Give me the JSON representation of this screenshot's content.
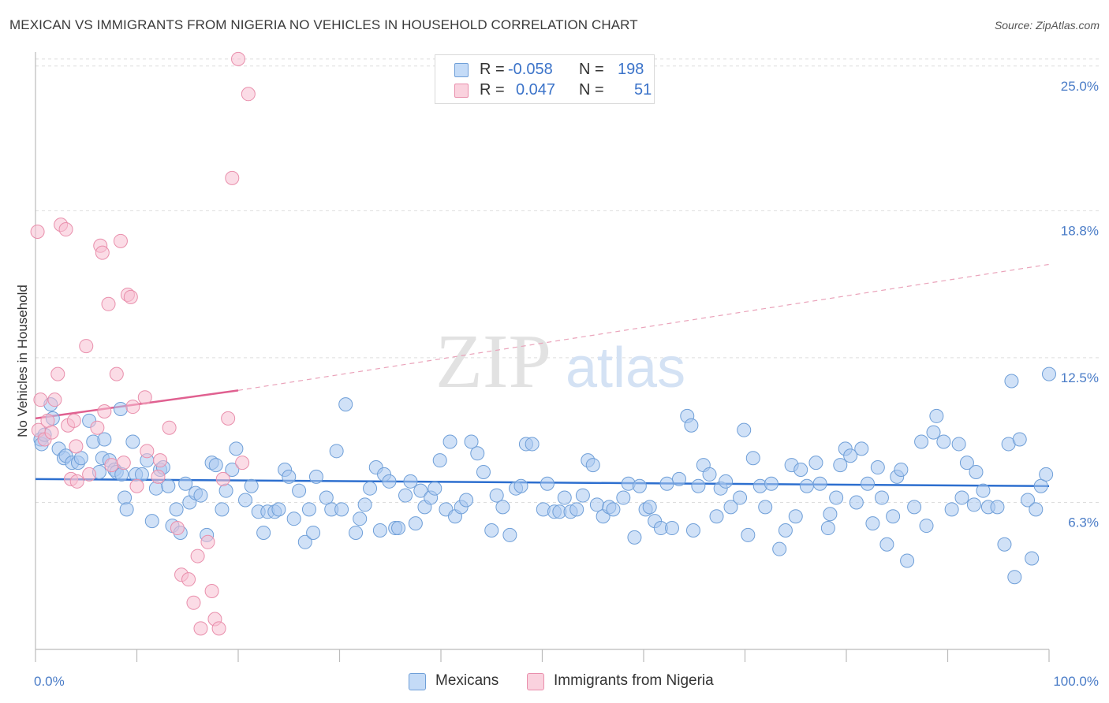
{
  "title": "MEXICAN VS IMMIGRANTS FROM NIGERIA NO VEHICLES IN HOUSEHOLD CORRELATION CHART",
  "source": "Source: ZipAtlas.com",
  "watermark": {
    "zip": "ZIP",
    "atlas": "atlas"
  },
  "legend": {
    "rows": [
      {
        "r_label": "R =",
        "r_value": "-0.058",
        "n_label": "N =",
        "n_value": "198",
        "color": "#a9c8f0",
        "stroke": "#6f9fd8"
      },
      {
        "r_label": "R =",
        "r_value": "0.047",
        "n_label": "N =",
        "n_value": "51",
        "color": "#f7c0d1",
        "stroke": "#e98fac"
      }
    ]
  },
  "bottom_legend": [
    {
      "label": "Mexicans",
      "color": "#b9d4f5",
      "stroke": "#6f9fd8"
    },
    {
      "label": "Immigrants from Nigeria",
      "color": "#f9ccda",
      "stroke": "#e98fac"
    }
  ],
  "chart_data": {
    "type": "scatter",
    "title": "MEXICAN VS IMMIGRANTS FROM NIGERIA NO VEHICLES IN HOUSEHOLD CORRELATION CHART",
    "xlabel": "",
    "ylabel": "No Vehicles in Household",
    "xlim": [
      0,
      100
    ],
    "ylim": [
      0,
      25.6
    ],
    "x_tick_labels": [
      "0.0%",
      "100.0%"
    ],
    "y_ticks": [
      6.3,
      12.5,
      18.8,
      25.0
    ],
    "y_tick_labels": [
      "6.3%",
      "12.5%",
      "18.8%",
      "25.0%"
    ],
    "grid": "horizontal dashed",
    "legend_position": "top-center",
    "series": [
      {
        "name": "Mexicans",
        "color": "#a9c8f0",
        "stroke": "#6f9fd8",
        "trend": {
          "x": [
            0,
            100
          ],
          "y": [
            7.3,
            7.0
          ],
          "color": "#2d6fcf"
        },
        "points": [
          [
            0.5,
            9.0
          ],
          [
            0.6,
            8.8
          ],
          [
            0.9,
            9.2
          ],
          [
            1.5,
            10.5
          ],
          [
            1.7,
            9.9
          ],
          [
            2.3,
            8.6
          ],
          [
            2.8,
            8.2
          ],
          [
            3.0,
            8.3
          ],
          [
            3.6,
            8.0
          ],
          [
            4.2,
            8.0
          ],
          [
            4.5,
            8.2
          ],
          [
            5.3,
            9.8
          ],
          [
            5.7,
            8.9
          ],
          [
            6.3,
            7.6
          ],
          [
            6.6,
            8.2
          ],
          [
            6.8,
            9.0
          ],
          [
            7.3,
            8.1
          ],
          [
            7.8,
            7.7
          ],
          [
            8.0,
            7.6
          ],
          [
            8.4,
            10.3
          ],
          [
            8.5,
            7.5
          ],
          [
            8.8,
            6.5
          ],
          [
            9.0,
            6.0
          ],
          [
            9.6,
            8.9
          ],
          [
            9.9,
            7.5
          ],
          [
            10.5,
            7.5
          ],
          [
            11.0,
            8.1
          ],
          [
            11.5,
            5.5
          ],
          [
            11.9,
            6.9
          ],
          [
            12.3,
            7.7
          ],
          [
            12.6,
            7.8
          ],
          [
            13.1,
            7.0
          ],
          [
            13.5,
            5.3
          ],
          [
            13.9,
            6.0
          ],
          [
            14.3,
            5.0
          ],
          [
            14.8,
            7.1
          ],
          [
            15.2,
            6.3
          ],
          [
            15.8,
            6.7
          ],
          [
            16.3,
            6.6
          ],
          [
            16.9,
            4.9
          ],
          [
            17.4,
            8.0
          ],
          [
            17.8,
            7.9
          ],
          [
            18.4,
            6.0
          ],
          [
            18.8,
            6.8
          ],
          [
            19.4,
            7.7
          ],
          [
            19.8,
            8.6
          ],
          [
            20.7,
            6.4
          ],
          [
            21.3,
            7.0
          ],
          [
            22.0,
            5.9
          ],
          [
            22.5,
            5.0
          ],
          [
            22.9,
            5.9
          ],
          [
            23.6,
            5.9
          ],
          [
            24.0,
            6.0
          ],
          [
            24.6,
            7.7
          ],
          [
            25.0,
            7.4
          ],
          [
            25.5,
            5.6
          ],
          [
            26.0,
            6.8
          ],
          [
            26.6,
            4.6
          ],
          [
            27.0,
            6.0
          ],
          [
            27.4,
            5.0
          ],
          [
            27.7,
            7.4
          ],
          [
            28.7,
            6.5
          ],
          [
            29.2,
            6.0
          ],
          [
            29.7,
            8.5
          ],
          [
            30.2,
            6.0
          ],
          [
            30.6,
            10.5
          ],
          [
            31.6,
            5.0
          ],
          [
            32.0,
            5.6
          ],
          [
            32.5,
            6.2
          ],
          [
            33.0,
            6.9
          ],
          [
            33.6,
            7.8
          ],
          [
            34.0,
            5.1
          ],
          [
            34.4,
            7.5
          ],
          [
            34.9,
            7.2
          ],
          [
            35.5,
            5.2
          ],
          [
            35.8,
            5.2
          ],
          [
            36.5,
            6.6
          ],
          [
            37.0,
            7.2
          ],
          [
            37.5,
            5.4
          ],
          [
            38.0,
            6.8
          ],
          [
            38.4,
            6.1
          ],
          [
            39.0,
            6.5
          ],
          [
            39.4,
            6.9
          ],
          [
            39.9,
            8.1
          ],
          [
            40.5,
            6.0
          ],
          [
            40.9,
            8.9
          ],
          [
            41.4,
            5.7
          ],
          [
            42.0,
            6.1
          ],
          [
            42.5,
            6.4
          ],
          [
            43.0,
            8.9
          ],
          [
            43.6,
            8.4
          ],
          [
            44.2,
            7.6
          ],
          [
            45.0,
            5.1
          ],
          [
            45.5,
            6.6
          ],
          [
            46.1,
            6.1
          ],
          [
            46.8,
            4.9
          ],
          [
            47.4,
            6.9
          ],
          [
            47.9,
            7.0
          ],
          [
            48.4,
            8.8
          ],
          [
            49.0,
            8.8
          ],
          [
            50.1,
            6.0
          ],
          [
            50.5,
            7.1
          ],
          [
            51.2,
            5.9
          ],
          [
            51.7,
            5.9
          ],
          [
            52.2,
            6.5
          ],
          [
            52.8,
            5.9
          ],
          [
            53.4,
            6.0
          ],
          [
            54.0,
            6.6
          ],
          [
            54.5,
            8.1
          ],
          [
            55.0,
            7.9
          ],
          [
            55.4,
            6.2
          ],
          [
            56.0,
            5.7
          ],
          [
            56.6,
            6.1
          ],
          [
            57.0,
            6.0
          ],
          [
            58.0,
            6.5
          ],
          [
            58.5,
            7.1
          ],
          [
            59.1,
            4.8
          ],
          [
            59.6,
            7.0
          ],
          [
            60.2,
            6.0
          ],
          [
            60.6,
            6.1
          ],
          [
            61.1,
            5.5
          ],
          [
            61.7,
            5.2
          ],
          [
            62.3,
            7.1
          ],
          [
            62.8,
            5.2
          ],
          [
            63.5,
            7.3
          ],
          [
            64.3,
            10.0
          ],
          [
            64.7,
            9.6
          ],
          [
            64.9,
            5.1
          ],
          [
            65.4,
            7.0
          ],
          [
            65.9,
            7.9
          ],
          [
            66.5,
            7.5
          ],
          [
            67.2,
            5.7
          ],
          [
            67.6,
            6.9
          ],
          [
            68.1,
            7.2
          ],
          [
            68.6,
            6.1
          ],
          [
            69.5,
            6.5
          ],
          [
            69.9,
            9.4
          ],
          [
            70.3,
            4.9
          ],
          [
            70.8,
            8.2
          ],
          [
            71.5,
            7.0
          ],
          [
            72.0,
            6.1
          ],
          [
            72.6,
            7.1
          ],
          [
            73.4,
            4.3
          ],
          [
            74.0,
            5.1
          ],
          [
            74.6,
            7.9
          ],
          [
            75.0,
            5.7
          ],
          [
            75.5,
            7.7
          ],
          [
            76.1,
            7.0
          ],
          [
            77.0,
            8.0
          ],
          [
            77.4,
            7.1
          ],
          [
            78.2,
            5.2
          ],
          [
            78.4,
            5.8
          ],
          [
            79.0,
            6.5
          ],
          [
            79.4,
            7.9
          ],
          [
            79.9,
            8.6
          ],
          [
            80.4,
            8.3
          ],
          [
            81.0,
            6.3
          ],
          [
            81.5,
            8.6
          ],
          [
            82.1,
            7.1
          ],
          [
            82.6,
            5.4
          ],
          [
            83.1,
            7.8
          ],
          [
            83.5,
            6.5
          ],
          [
            84.0,
            4.5
          ],
          [
            84.6,
            5.7
          ],
          [
            85.0,
            7.4
          ],
          [
            85.4,
            7.7
          ],
          [
            86.0,
            3.8
          ],
          [
            86.7,
            6.1
          ],
          [
            87.4,
            8.9
          ],
          [
            87.9,
            5.3
          ],
          [
            88.6,
            9.3
          ],
          [
            88.9,
            10.0
          ],
          [
            89.6,
            8.9
          ],
          [
            90.4,
            6.0
          ],
          [
            91.1,
            8.8
          ],
          [
            91.4,
            6.5
          ],
          [
            91.9,
            8.0
          ],
          [
            92.6,
            6.2
          ],
          [
            92.8,
            7.6
          ],
          [
            93.5,
            6.8
          ],
          [
            94.0,
            6.1
          ],
          [
            94.9,
            6.1
          ],
          [
            95.6,
            4.5
          ],
          [
            96.0,
            8.8
          ],
          [
            96.3,
            11.5
          ],
          [
            96.6,
            3.1
          ],
          [
            97.1,
            9.0
          ],
          [
            97.9,
            6.4
          ],
          [
            98.3,
            3.9
          ],
          [
            98.7,
            6.0
          ],
          [
            99.2,
            7.0
          ],
          [
            99.7,
            7.5
          ],
          [
            100.0,
            11.8
          ]
        ]
      },
      {
        "name": "Immigrants from Nigeria",
        "color": "#f7c0d1",
        "stroke": "#e98fac",
        "trend": {
          "x": [
            0,
            20
          ],
          "y": [
            9.9,
            11.1
          ],
          "extended_to": [
            100,
            16.5
          ],
          "color": "#e06090"
        },
        "points": [
          [
            0.2,
            17.9
          ],
          [
            0.3,
            9.4
          ],
          [
            0.5,
            10.7
          ],
          [
            0.9,
            9.0
          ],
          [
            1.2,
            9.8
          ],
          [
            1.6,
            9.3
          ],
          [
            1.9,
            10.7
          ],
          [
            2.2,
            11.8
          ],
          [
            2.5,
            18.2
          ],
          [
            3.0,
            18.0
          ],
          [
            3.2,
            9.6
          ],
          [
            3.5,
            7.3
          ],
          [
            3.8,
            9.8
          ],
          [
            4.0,
            8.7
          ],
          [
            4.1,
            7.2
          ],
          [
            5.0,
            13.0
          ],
          [
            5.3,
            7.5
          ],
          [
            6.1,
            9.5
          ],
          [
            6.4,
            17.3
          ],
          [
            6.6,
            17.0
          ],
          [
            6.8,
            10.2
          ],
          [
            7.2,
            14.8
          ],
          [
            7.5,
            7.9
          ],
          [
            8.0,
            11.8
          ],
          [
            8.4,
            17.5
          ],
          [
            8.7,
            8.0
          ],
          [
            9.1,
            15.2
          ],
          [
            9.4,
            15.1
          ],
          [
            9.6,
            10.4
          ],
          [
            10.0,
            7.0
          ],
          [
            10.8,
            10.8
          ],
          [
            11.0,
            8.5
          ],
          [
            12.1,
            7.4
          ],
          [
            12.3,
            8.1
          ],
          [
            13.2,
            9.5
          ],
          [
            14.0,
            5.2
          ],
          [
            14.4,
            3.2
          ],
          [
            15.1,
            3.0
          ],
          [
            15.6,
            2.0
          ],
          [
            16.0,
            4.0
          ],
          [
            16.3,
            0.9
          ],
          [
            17.0,
            4.6
          ],
          [
            17.4,
            2.5
          ],
          [
            17.7,
            1.3
          ],
          [
            18.1,
            0.9
          ],
          [
            18.5,
            7.3
          ],
          [
            19.0,
            9.9
          ],
          [
            19.4,
            20.2
          ],
          [
            20.0,
            25.3
          ],
          [
            20.4,
            8.0
          ],
          [
            21.0,
            23.8
          ]
        ]
      }
    ]
  }
}
